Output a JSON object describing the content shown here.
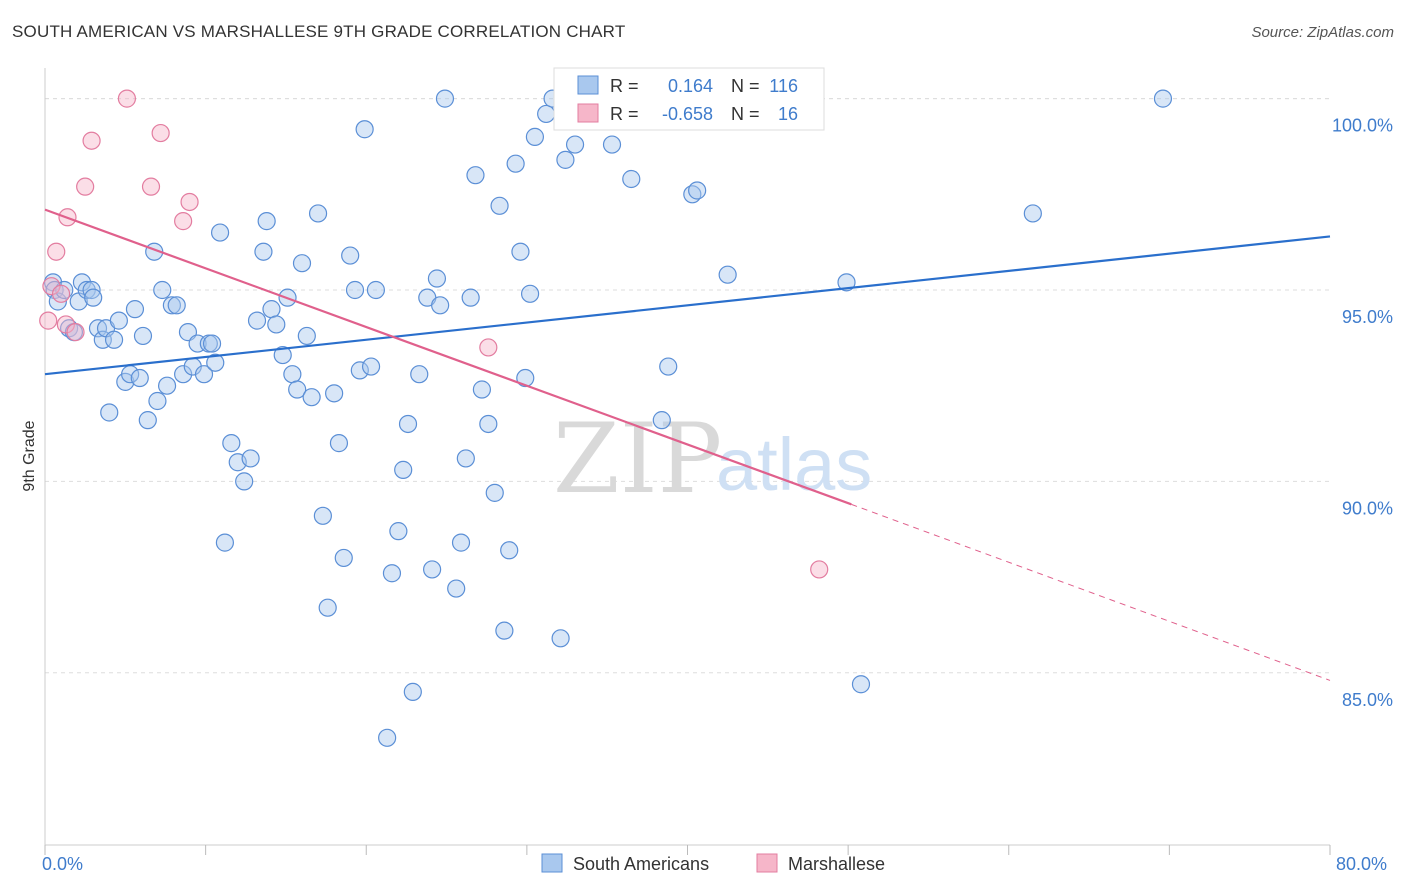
{
  "title": "SOUTH AMERICAN VS MARSHALLESE 9TH GRADE CORRELATION CHART",
  "source": "Source: ZipAtlas.com",
  "colors": {
    "blue_fill": "#a9c8ee",
    "blue_stroke": "#5b8fd6",
    "blue_line": "#2a6fcc",
    "pink_fill": "#f6b6c9",
    "pink_stroke": "#e37da0",
    "pink_line": "#e0608c",
    "grid": "#dddddd",
    "tick_label": "#3f7ccc"
  },
  "legend": {
    "rows": [
      {
        "r_label": "R =",
        "r_value": "0.164",
        "n_label": "N =",
        "n_value": "116"
      },
      {
        "r_label": "R =",
        "r_value": "-0.658",
        "n_label": "N =",
        "n_value": "16"
      }
    ]
  },
  "bottom_legend": [
    "South Americans",
    "Marshallese"
  ],
  "watermark": {
    "zip": "ZIP",
    "atlas": "atlas"
  },
  "chart_data": {
    "type": "scatter",
    "title": "SOUTH AMERICAN VS MARSHALLESE 9TH GRADE CORRELATION CHART",
    "xlabel": "",
    "ylabel": "9th Grade",
    "xlim": [
      0,
      80
    ],
    "ylim": [
      80.5,
      100.8
    ],
    "x_tick_labels": [
      "0.0%",
      "80.0%"
    ],
    "y_ticks": [
      85,
      90,
      95,
      100
    ],
    "y_tick_labels": [
      "85.0%",
      "90.0%",
      "95.0%",
      "100.0%"
    ],
    "grid": true,
    "legend_position": "top-center",
    "series": [
      {
        "name": "South Americans",
        "r": 0.164,
        "n": 116,
        "trend": {
          "x0": 0,
          "y0": 92.8,
          "x1": 80,
          "y1": 96.4
        },
        "points": [
          [
            0.5,
            95.2
          ],
          [
            0.6,
            95.0
          ],
          [
            0.8,
            94.7
          ],
          [
            1.2,
            95.0
          ],
          [
            1.5,
            94.0
          ],
          [
            1.8,
            93.9
          ],
          [
            2.1,
            94.7
          ],
          [
            2.3,
            95.2
          ],
          [
            2.6,
            95.0
          ],
          [
            2.9,
            95.0
          ],
          [
            3.0,
            94.8
          ],
          [
            3.3,
            94.0
          ],
          [
            3.6,
            93.7
          ],
          [
            3.8,
            94.0
          ],
          [
            4.0,
            91.8
          ],
          [
            4.3,
            93.7
          ],
          [
            4.6,
            94.2
          ],
          [
            5.0,
            92.6
          ],
          [
            5.3,
            92.8
          ],
          [
            5.6,
            94.5
          ],
          [
            5.9,
            92.7
          ],
          [
            6.1,
            93.8
          ],
          [
            6.4,
            91.6
          ],
          [
            6.8,
            96.0
          ],
          [
            7.0,
            92.1
          ],
          [
            7.3,
            95.0
          ],
          [
            7.6,
            92.5
          ],
          [
            7.9,
            94.6
          ],
          [
            8.2,
            94.6
          ],
          [
            8.6,
            92.8
          ],
          [
            8.9,
            93.9
          ],
          [
            9.2,
            93.0
          ],
          [
            9.5,
            93.6
          ],
          [
            9.9,
            92.8
          ],
          [
            10.2,
            93.6
          ],
          [
            10.4,
            93.6
          ],
          [
            10.6,
            93.1
          ],
          [
            10.9,
            96.5
          ],
          [
            11.2,
            88.4
          ],
          [
            11.6,
            91.0
          ],
          [
            12.0,
            90.5
          ],
          [
            12.4,
            90.0
          ],
          [
            12.8,
            90.6
          ],
          [
            13.2,
            94.2
          ],
          [
            13.6,
            96.0
          ],
          [
            13.8,
            96.8
          ],
          [
            14.1,
            94.5
          ],
          [
            14.4,
            94.1
          ],
          [
            14.8,
            93.3
          ],
          [
            15.1,
            94.8
          ],
          [
            15.4,
            92.8
          ],
          [
            15.7,
            92.4
          ],
          [
            16.0,
            95.7
          ],
          [
            16.3,
            93.8
          ],
          [
            16.6,
            92.2
          ],
          [
            17.0,
            97.0
          ],
          [
            17.3,
            89.1
          ],
          [
            17.6,
            86.7
          ],
          [
            18.0,
            92.3
          ],
          [
            18.3,
            91.0
          ],
          [
            18.6,
            88.0
          ],
          [
            19.0,
            95.9
          ],
          [
            19.3,
            95.0
          ],
          [
            19.6,
            92.9
          ],
          [
            19.9,
            99.2
          ],
          [
            20.3,
            93.0
          ],
          [
            20.6,
            95.0
          ],
          [
            21.3,
            83.3
          ],
          [
            21.6,
            87.6
          ],
          [
            22.0,
            88.7
          ],
          [
            22.3,
            90.3
          ],
          [
            22.6,
            91.5
          ],
          [
            22.9,
            84.5
          ],
          [
            23.3,
            92.8
          ],
          [
            23.8,
            94.8
          ],
          [
            24.1,
            87.7
          ],
          [
            24.4,
            95.3
          ],
          [
            24.6,
            94.6
          ],
          [
            24.9,
            100.0
          ],
          [
            25.6,
            87.2
          ],
          [
            25.9,
            88.4
          ],
          [
            26.2,
            90.6
          ],
          [
            26.5,
            94.8
          ],
          [
            26.8,
            98.0
          ],
          [
            27.2,
            92.4
          ],
          [
            27.6,
            91.5
          ],
          [
            28.0,
            89.7
          ],
          [
            28.3,
            97.2
          ],
          [
            28.6,
            86.1
          ],
          [
            28.9,
            88.2
          ],
          [
            29.3,
            98.3
          ],
          [
            29.6,
            96.0
          ],
          [
            29.9,
            92.7
          ],
          [
            30.2,
            94.9
          ],
          [
            30.5,
            99.0
          ],
          [
            31.2,
            99.6
          ],
          [
            31.6,
            100.0
          ],
          [
            32.1,
            85.9
          ],
          [
            32.4,
            98.4
          ],
          [
            33.0,
            98.8
          ],
          [
            33.3,
            99.9
          ],
          [
            34.3,
            99.8
          ],
          [
            35.3,
            98.8
          ],
          [
            36.5,
            97.9
          ],
          [
            37.6,
            99.8
          ],
          [
            38.4,
            91.6
          ],
          [
            38.8,
            93.0
          ],
          [
            39.2,
            100.0
          ],
          [
            40.3,
            97.5
          ],
          [
            40.6,
            97.6
          ],
          [
            42.5,
            95.4
          ],
          [
            49.9,
            95.2
          ],
          [
            50.8,
            84.7
          ],
          [
            61.5,
            97.0
          ],
          [
            69.6,
            100.0
          ]
        ]
      },
      {
        "name": "Marshallese",
        "r": -0.658,
        "n": 16,
        "trend": {
          "x0": 0,
          "y0": 97.1,
          "x1": 50.2,
          "y1": 89.4
        },
        "trend_dashed": {
          "x0": 50.2,
          "y0": 89.4,
          "x1": 80,
          "y1": 84.8
        },
        "points": [
          [
            0.2,
            94.2
          ],
          [
            0.4,
            95.1
          ],
          [
            0.7,
            96.0
          ],
          [
            1.0,
            94.9
          ],
          [
            1.3,
            94.1
          ],
          [
            1.4,
            96.9
          ],
          [
            1.9,
            93.9
          ],
          [
            2.5,
            97.7
          ],
          [
            2.9,
            98.9
          ],
          [
            5.1,
            100.0
          ],
          [
            6.6,
            97.7
          ],
          [
            7.2,
            99.1
          ],
          [
            8.6,
            96.8
          ],
          [
            9.0,
            97.3
          ],
          [
            27.6,
            93.5
          ],
          [
            48.2,
            87.7
          ]
        ]
      }
    ]
  }
}
